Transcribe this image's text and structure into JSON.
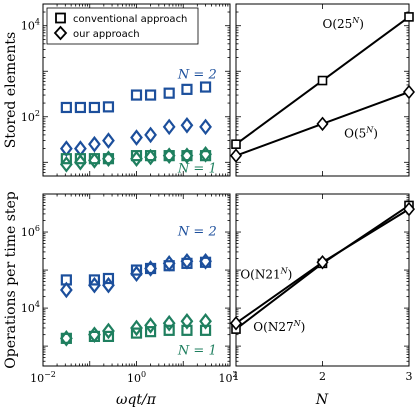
{
  "colors": {
    "blue": "#1c4f9c",
    "green": "#1f7f5f",
    "black": "#000000"
  },
  "legend": {
    "entries": [
      {
        "label": "conventional approach",
        "marker": "square"
      },
      {
        "label": "our approach",
        "marker": "diamond"
      }
    ]
  },
  "chart_data": [
    {
      "type": "scatter",
      "panel": "top-left",
      "ylabel": "Stored elements",
      "xscale": "log",
      "yscale": "log",
      "xlim": [
        0.01,
        100
      ],
      "ylim": [
        5,
        30000
      ],
      "yticks": [
        100,
        10000
      ],
      "ytick_labels": [
        {
          "base": "10",
          "exp": "2"
        },
        {
          "base": "10",
          "exp": "4"
        }
      ],
      "annotations": [
        {
          "text": "N = 2",
          "color": "blue",
          "x": 20,
          "y": 700
        },
        {
          "text": "N = 1",
          "color": "green",
          "x": 20,
          "y": 6
        }
      ],
      "series": [
        {
          "name": "N = 2 conventional approach",
          "marker": "square",
          "color": "blue",
          "x": [
            0.0316,
            0.0631,
            0.1259,
            0.2512,
            1.0,
            2.0,
            5.0,
            12.0,
            30.0
          ],
          "y": [
            160,
            160,
            160,
            165,
            300,
            300,
            330,
            400,
            450
          ]
        },
        {
          "name": "N = 2 our approach",
          "marker": "diamond",
          "color": "blue",
          "x": [
            0.0316,
            0.0631,
            0.1259,
            0.2512,
            1.0,
            2.0,
            5.0,
            12.0,
            30.0
          ],
          "y": [
            20,
            20,
            25,
            30,
            35,
            40,
            60,
            65,
            60
          ]
        },
        {
          "name": "N = 1 conventional approach",
          "marker": "square",
          "color": "green",
          "x": [
            0.0316,
            0.0631,
            0.1259,
            0.2512,
            1.0,
            2.0,
            5.0,
            12.0,
            30.0
          ],
          "y": [
            12,
            12,
            12,
            12,
            14,
            14,
            14,
            14,
            14
          ]
        },
        {
          "name": "N = 1 our approach",
          "marker": "diamond",
          "color": "green",
          "x": [
            0.0316,
            0.0631,
            0.1259,
            0.2512,
            1.0,
            2.0,
            5.0,
            12.0,
            30.0
          ],
          "y": [
            9,
            10,
            11,
            12,
            12,
            13,
            14,
            14,
            15
          ]
        }
      ]
    },
    {
      "type": "line",
      "panel": "top-right",
      "xscale": "linear",
      "yscale": "log",
      "xlim": [
        1,
        3
      ],
      "ylim": [
        5,
        30000
      ],
      "annotations": [
        {
          "text": "O(25^N)",
          "base": "O(25",
          "exp": "N",
          "tail": ")",
          "x": 2.0,
          "y": 9000
        },
        {
          "text": "O(5^N)",
          "base": "O(5",
          "exp": "N",
          "tail": ")",
          "x": 2.25,
          "y": 35
        }
      ],
      "series": [
        {
          "name": "conventional approach",
          "marker": "square",
          "color": "black",
          "x": [
            1,
            2,
            3
          ],
          "y": [
            25,
            625,
            15625
          ]
        },
        {
          "name": "our approach",
          "marker": "diamond",
          "color": "black",
          "x": [
            1,
            2,
            3
          ],
          "y": [
            14,
            70,
            350
          ]
        }
      ]
    },
    {
      "type": "scatter",
      "panel": "bottom-left",
      "ylabel": "Operations per time step",
      "xlabel": "ωqt/π",
      "xscale": "log",
      "yscale": "log",
      "xlim": [
        0.01,
        100
      ],
      "ylim": [
        300,
        10000000
      ],
      "yticks": [
        10000,
        1000000
      ],
      "ytick_labels": [
        {
          "base": "10",
          "exp": "4"
        },
        {
          "base": "10",
          "exp": "6"
        }
      ],
      "xticks": [
        0.01,
        1,
        100
      ],
      "xtick_labels": [
        {
          "base": "10",
          "exp": "−2"
        },
        {
          "base": "10",
          "exp": "0"
        },
        {
          "base": "10",
          "exp": "2"
        }
      ],
      "annotations": [
        {
          "text": "N = 2",
          "color": "blue",
          "x": 20,
          "y": 800000
        },
        {
          "text": "N = 1",
          "color": "green",
          "x": 20,
          "y": 600
        }
      ],
      "series": [
        {
          "name": "N = 2 conventional approach",
          "marker": "square",
          "color": "blue",
          "x": [
            0.0316,
            0.1259,
            0.2512,
            1.0,
            2.0,
            5.0,
            12.0,
            30.0
          ],
          "y": [
            55000,
            55000,
            60000,
            100000,
            110000,
            130000,
            150000,
            160000
          ]
        },
        {
          "name": "N = 2 our approach",
          "marker": "diamond",
          "color": "blue",
          "x": [
            0.0316,
            0.1259,
            0.2512,
            1.0,
            2.0,
            5.0,
            12.0,
            30.0
          ],
          "y": [
            30000,
            40000,
            40000,
            80000,
            110000,
            150000,
            170000,
            170000
          ]
        },
        {
          "name": "N = 1 conventional approach",
          "marker": "square",
          "color": "green",
          "x": [
            0.0316,
            0.1259,
            0.2512,
            1.0,
            2.0,
            5.0,
            12.0,
            30.0
          ],
          "y": [
            1600,
            1800,
            1800,
            2200,
            2400,
            2600,
            2600,
            2600
          ]
        },
        {
          "name": "N = 1 our approach",
          "marker": "diamond",
          "color": "green",
          "x": [
            0.0316,
            0.1259,
            0.2512,
            1.0,
            2.0,
            5.0,
            12.0,
            30.0
          ],
          "y": [
            1600,
            2000,
            2500,
            3000,
            3500,
            4000,
            4500,
            4500
          ]
        }
      ]
    },
    {
      "type": "line",
      "panel": "bottom-right",
      "xlabel": "N",
      "xscale": "linear",
      "yscale": "log",
      "xlim": [
        1,
        3
      ],
      "ylim": [
        300,
        10000000
      ],
      "xticks": [
        1,
        2,
        3
      ],
      "xtick_labels": [
        "1",
        "2",
        "3"
      ],
      "annotations": [
        {
          "text": "O(N21^N)",
          "base": "O(N21",
          "exp": "N",
          "tail": ")",
          "x": 1.05,
          "y": 60000
        },
        {
          "text": "O(N27^N)",
          "base": "O(N27",
          "exp": "N",
          "tail": ")",
          "x": 1.2,
          "y": 2500
        }
      ],
      "series": [
        {
          "name": "conventional approach",
          "marker": "square",
          "color": "black",
          "x": [
            1,
            2,
            3
          ],
          "y": [
            2800,
            150000,
            5000000
          ]
        },
        {
          "name": "our approach",
          "marker": "diamond",
          "color": "black",
          "x": [
            1,
            2,
            3
          ],
          "y": [
            4000,
            160000,
            4000000
          ]
        }
      ]
    }
  ]
}
